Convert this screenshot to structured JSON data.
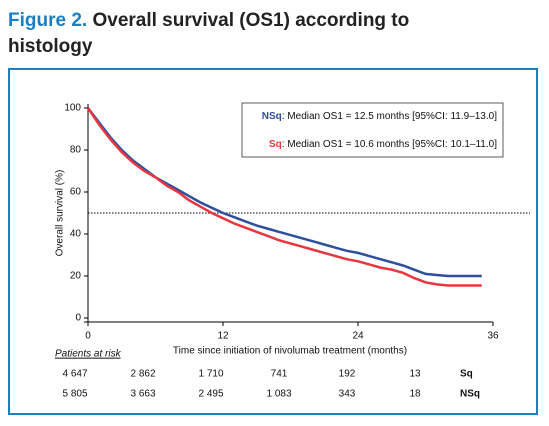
{
  "chart_data": {
    "type": "line",
    "figure_label": "Figure 2.",
    "title": "Overall survival (OS1) according to histology",
    "xlabel": "Time since initiation of nivolumab treatment (months)",
    "ylabel": "Overall survival (%)",
    "xlim": [
      0,
      36
    ],
    "xticks": [
      0,
      12,
      24,
      36
    ],
    "ylim": [
      0,
      100
    ],
    "yticks": [
      0,
      20,
      40,
      60,
      80,
      100
    ],
    "reference_line": 50,
    "x": [
      0,
      1,
      2,
      3,
      4,
      5,
      6,
      7,
      8,
      9,
      10,
      11,
      12,
      13,
      14,
      15,
      16,
      17,
      18,
      19,
      20,
      21,
      22,
      23,
      24,
      25,
      26,
      27,
      28,
      29,
      30,
      31,
      32,
      33,
      34,
      35
    ],
    "series": [
      {
        "name": "NSq",
        "color": "#2e4f9e",
        "legend_text": ": Median OS1 = 12.5 months [95%CI: 11.9–13.0]",
        "values": [
          100,
          93,
          86,
          80,
          75,
          71,
          67,
          64,
          61,
          58,
          55,
          52.5,
          50,
          48,
          46,
          44,
          42.5,
          41,
          39.5,
          38,
          36.5,
          35,
          33.5,
          32,
          31,
          29.5,
          28,
          26.5,
          25,
          23,
          21,
          20.5,
          20,
          20,
          20,
          20
        ]
      },
      {
        "name": "Sq",
        "color": "#e8363f",
        "legend_text": ": Median OS1 = 10.6 months [95%CI: 10.1–11.0]",
        "values": [
          100,
          92,
          85,
          79,
          74,
          70,
          67,
          63,
          60,
          56,
          53,
          50,
          47.5,
          45,
          43,
          41,
          39,
          37,
          35.5,
          34,
          32.5,
          31,
          29.5,
          28,
          27,
          25.5,
          24,
          23,
          21.5,
          19,
          17,
          16,
          15.5,
          15.5,
          15.5,
          15.5
        ]
      }
    ],
    "risk_table": {
      "title": "Patients at risk",
      "rows": [
        {
          "name": "Sq",
          "color": "#e8363f",
          "values": [
            "4 647",
            "2 862",
            "1 710",
            "741",
            "192",
            "13"
          ]
        },
        {
          "name": "NSq",
          "color": "#2e4f9e",
          "values": [
            "5 805",
            "3 663",
            "2 495",
            "1 083",
            "343",
            "18"
          ]
        }
      ]
    }
  }
}
